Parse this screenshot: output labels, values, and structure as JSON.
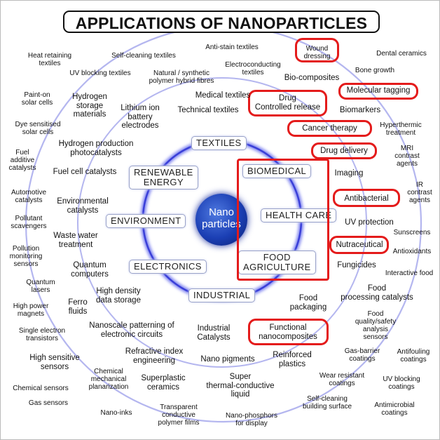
{
  "title": "APPLICATIONS OF NANOPARTICLES",
  "center": {
    "line1": "Nano",
    "line2": "particles"
  },
  "categories": {
    "textiles": "TEXTILES",
    "renewable1": "RENEWABLE",
    "renewable2": "ENERGY",
    "biomedical": "BIOMEDICAL",
    "environment": "ENVIRONMENT",
    "health_care": "HEALTH CARE",
    "electronics": "ELECTRONICS",
    "food1": "FOOD",
    "food2": "AGRICULTURE",
    "industrial": "INDUSTRIAL"
  },
  "apps": {
    "heat1": "Heat retaining",
    "heat2": "textiles",
    "selfclean_textiles": "Self-cleaning textiles",
    "antistain": "Anti-stain textiles",
    "wound1": "Wound",
    "wound2": "dressing",
    "dental": "Dental ceramics",
    "uvblock_textiles": "UV blocking textiles",
    "natsyn1": "Natural / synthetic",
    "natsyn2": "polymer hybrid fibres",
    "elcond1": "Electroconducting",
    "elcond2": "textiles",
    "bone": "Bone growth",
    "biocomp": "Bio-composites",
    "painton1": "Paint-on",
    "painton2": "solar cells",
    "hstor1": "Hydrogen",
    "hstor2": "storage",
    "hstor3": "materials",
    "medtex": "Medical textiles",
    "drug1": "Drug",
    "drug2": "Controlled release",
    "moltag": "Molecular tagging",
    "liion1": "Lithium ion",
    "liion2": "battery",
    "liion3": "electrodes",
    "techtex": "Technical textiles",
    "biomarkers": "Biomarkers",
    "dye1": "Dye sensitised",
    "dye2": "solar cells",
    "cancer": "Cancer therapy",
    "hyper1": "Hyperthermic",
    "hyper2": "treatment",
    "fuelad1": "Fuel",
    "fuelad2": "additive",
    "fuelad3": "catalysts",
    "hprod1": "Hydrogen production",
    "hprod2": "photocatalysts",
    "drugdel": "Drug delivery",
    "mri1": "MRI",
    "mri2": "contrast",
    "mri3": "agents",
    "fuelcell": "Fuel cell catalysts",
    "imaging": "Imaging",
    "ir1": "IR",
    "ir2": "contrast",
    "ir3": "agents",
    "auto1": "Automotive",
    "auto2": "catalysts",
    "envcat1": "Environmental",
    "envcat2": "catalysts",
    "antibacterial": "Antibacterial",
    "pollscav1": "Pollutant",
    "pollscav2": "scavengers",
    "uvprot": "UV protection",
    "sunscreens": "Sunscreens",
    "wastew1": "Waste water",
    "wastew2": "treatment",
    "pollmon1": "Pollution",
    "pollmon2": "monitoring",
    "pollmon3": "sensors",
    "nutra": "Nutraceutical",
    "antiox": "Antioxidants",
    "quantum1": "Quantum",
    "quantum2": "computers",
    "fungicides": "Fungicides",
    "qlas1": "Quantum",
    "qlas2": "lasers",
    "interfood": "Interactive food",
    "hdds1": "High density",
    "hdds2": "data storage",
    "ferro1": "Ferro",
    "ferro2": "fluids",
    "hpm1": "High power",
    "hpm2": "magnets",
    "foodpack1": "Food",
    "foodpack2": "packaging",
    "fpcat1": "Food",
    "fpcat2": "processing catalysts",
    "fqs1": "Food",
    "fqs2": "quality/safety",
    "fqs3": "analysis",
    "fqs4": "sensors",
    "npat1": "Nanoscale patterning of",
    "npat2": "electronic circuits",
    "indcat1": "Industrial",
    "indcat2": "Catalysts",
    "set1": "Single electron",
    "set2": "transistors",
    "funcnano1": "Functional",
    "funcnano2": "nanocomposites",
    "hss1": "High sensitive",
    "hss2": "sensors",
    "refr1": "Refractive index",
    "refr2": "engineering",
    "reinf1": "Reinforced",
    "reinf2": "plastics",
    "gasbar1": "Gas-barrier",
    "gasbar2": "coatings",
    "antifoul1": "Antifouling",
    "antifoul2": "coatings",
    "nanopig": "Nano pigments",
    "cmp1": "Chemical",
    "cmp2": "mechanical",
    "cmp3": "planarization",
    "wear1": "Wear resistant",
    "wear2": "coatings",
    "superplast1": "Superplastic",
    "superplast2": "ceramics",
    "uvcoat1": "UV blocking",
    "uvcoat2": "coatings",
    "stcl1": "Super",
    "stcl2": "thermal-conductive",
    "stcl3": "liquid",
    "chemsens": "Chemical sensors",
    "scbs1": "Self-cleaning",
    "scbs2": "building surface",
    "gassens": "Gas sensors",
    "antimic1": "Antimicrobial",
    "antimic2": "coatings",
    "nanoinks": "Nano-inks",
    "tcpf1": "Transparent",
    "tcpf2": "conductive",
    "tcpf3": "polymer films",
    "nanophos1": "Nano-phosphors",
    "nanophos2": "for display"
  },
  "colors": {
    "highlight": "#e41b1b",
    "ring": "#8a8fe0",
    "core": "#1b3fb4"
  }
}
